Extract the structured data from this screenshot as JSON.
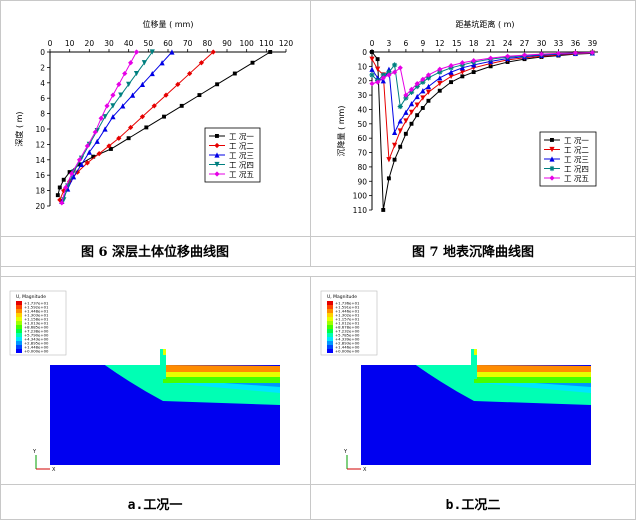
{
  "figure6": {
    "caption": "图 6 深层土体位移曲线图",
    "xlabel": "位移量 ( mm)",
    "ylabel": "深度 ( m)",
    "legend": [
      "工 况一",
      "工 况二",
      "工 况三",
      "工 况四",
      "工 况五"
    ]
  },
  "figure7": {
    "caption": "图 7 地表沉降曲线图",
    "xlabel": "距基坑距离 ( m)",
    "ylabel": "沉降量 ( mm)",
    "legend": [
      "工 况一",
      "工 况二",
      "工 况三",
      "工 况四",
      "工 况五"
    ]
  },
  "fem": {
    "caption_a": "a.工况一",
    "caption_b": "b.工况二",
    "legend_title": "U, Magnitude",
    "legend_values_a": [
      "+1.737e+01",
      "+1.592e+01",
      "+1.448e+01",
      "+1.303e+01",
      "+1.158e+01",
      "+1.013e+01",
      "+8.685e+00",
      "+7.238e+00",
      "+5.790e+00",
      "+4.343e+00",
      "+2.895e+00",
      "+1.448e+00",
      "+0.000e+00"
    ],
    "legend_values_b": [
      "+1.736e+01",
      "+1.591e+01",
      "+1.446e+01",
      "+1.302e+01",
      "+1.157e+01",
      "+1.012e+01",
      "+8.678e+00",
      "+7.232e+00",
      "+5.785e+00",
      "+4.339e+00",
      "+2.893e+00",
      "+1.446e+00",
      "+0.000e+00"
    ],
    "axis_y": "Y",
    "axis_x": "X",
    "colors": [
      "#e60000",
      "#ff4600",
      "#ff8c00",
      "#ffd200",
      "#e6ff00",
      "#a0ff00",
      "#46ff00",
      "#00ff46",
      "#00ffb4",
      "#00e6ff",
      "#0096ff",
      "#0046ff",
      "#0000ff"
    ]
  },
  "chart_data": [
    {
      "type": "line",
      "title": "",
      "xlabel": "位移量 ( mm)",
      "ylabel": "深度 ( m)",
      "xlim": [
        0,
        120
      ],
      "ylim": [
        0,
        20
      ],
      "y_inverted": true,
      "x_ticks": [
        0,
        10,
        20,
        30,
        40,
        50,
        60,
        70,
        80,
        90,
        100,
        110,
        120
      ],
      "y_ticks": [
        0,
        2,
        4,
        6,
        8,
        10,
        12,
        14,
        16,
        18,
        20
      ],
      "series": [
        {
          "name": "工 况一",
          "color": "#000000",
          "marker": "square",
          "x": [
            112,
            103,
            94,
            85,
            76,
            67,
            58,
            49,
            40,
            31,
            22,
            15,
            10,
            7,
            5,
            4
          ],
          "y": [
            0,
            1.4,
            2.8,
            4.2,
            5.6,
            7,
            8.4,
            9.8,
            11.2,
            12.6,
            13.6,
            14.6,
            15.6,
            16.6,
            17.6,
            18.6
          ]
        },
        {
          "name": "工 况二",
          "color": "#e60000",
          "marker": "diamond",
          "x": [
            83,
            77,
            71,
            65,
            59,
            53,
            47,
            41,
            35,
            30,
            25,
            19,
            14,
            10,
            7,
            5
          ],
          "y": [
            0,
            1.4,
            2.8,
            4.2,
            5.6,
            7,
            8.4,
            9.8,
            11.2,
            12.2,
            13.2,
            14.4,
            15.6,
            16.8,
            18,
            19.2
          ]
        },
        {
          "name": "工 况三",
          "color": "#0000e6",
          "marker": "triangle",
          "x": [
            62,
            57,
            52,
            47,
            42,
            37,
            32,
            28,
            24,
            20,
            16,
            12,
            9,
            6
          ],
          "y": [
            0,
            1.4,
            2.8,
            4.2,
            5.6,
            7,
            8.4,
            10,
            11.6,
            13,
            14.6,
            16.2,
            17.8,
            19.4
          ]
        },
        {
          "name": "工 况四",
          "color": "#008080",
          "marker": "triangle-down",
          "x": [
            52,
            48,
            44,
            40,
            36,
            32,
            28,
            24,
            20,
            16,
            12,
            9,
            7
          ],
          "y": [
            0,
            1.4,
            2.8,
            4.2,
            5.6,
            7,
            8.4,
            10.2,
            12,
            13.8,
            15.6,
            17.4,
            19.2
          ]
        },
        {
          "name": "工 况五",
          "color": "#e600e6",
          "marker": "diamond",
          "x": [
            44,
            41,
            38,
            35,
            32,
            29,
            26,
            23,
            19,
            15,
            11,
            8,
            6
          ],
          "y": [
            0,
            1.4,
            2.8,
            4.2,
            5.6,
            7,
            8.6,
            10.4,
            12.2,
            14,
            15.8,
            17.6,
            19.6
          ]
        }
      ]
    },
    {
      "type": "line",
      "title": "",
      "xlabel": "距基坑距离 ( m)",
      "ylabel": "沉降量 ( mm)",
      "xlim": [
        0,
        40
      ],
      "ylim": [
        0,
        110
      ],
      "y_inverted": true,
      "x_ticks": [
        0,
        3,
        6,
        9,
        12,
        15,
        18,
        21,
        24,
        27,
        30,
        33,
        36,
        39
      ],
      "y_ticks": [
        0,
        10,
        20,
        30,
        40,
        50,
        60,
        70,
        80,
        90,
        100,
        110
      ],
      "series": [
        {
          "name": "工 况一",
          "color": "#000000",
          "marker": "square",
          "x": [
            0,
            1,
            2,
            3,
            4,
            5,
            6,
            7,
            8,
            9,
            10,
            12,
            14,
            16,
            18,
            21,
            24,
            27,
            30,
            33,
            36,
            39
          ],
          "y": [
            0,
            5,
            110,
            88,
            75,
            66,
            57,
            50,
            44,
            39,
            34,
            27,
            21,
            17,
            14,
            10,
            7,
            5,
            3.5,
            2.5,
            1.5,
            1
          ]
        },
        {
          "name": "工 况二",
          "color": "#e60000",
          "marker": "triangle-down",
          "x": [
            0,
            1,
            2,
            3,
            4,
            5,
            6,
            7,
            8,
            9,
            10,
            12,
            14,
            16,
            18,
            21,
            24,
            27,
            30,
            33,
            36,
            39
          ],
          "y": [
            5,
            12,
            16,
            75,
            65,
            55,
            48,
            42,
            37,
            32,
            28,
            22,
            17,
            14,
            11,
            8,
            5.5,
            4,
            3,
            2,
            1.2,
            0.8
          ]
        },
        {
          "name": "工 况三",
          "color": "#0000e6",
          "marker": "triangle",
          "x": [
            0,
            1,
            2,
            3,
            4,
            5,
            6,
            7,
            8,
            9,
            10,
            12,
            14,
            16,
            18,
            21,
            24,
            27,
            30,
            33,
            36,
            39
          ],
          "y": [
            12,
            18,
            20,
            12,
            56,
            48,
            42,
            36,
            31,
            27,
            24,
            18,
            14,
            11,
            9,
            6.5,
            4.5,
            3.2,
            2.3,
            1.6,
            1,
            0.6
          ]
        },
        {
          "name": "工 况四",
          "color": "#008080",
          "marker": "star",
          "x": [
            0,
            1,
            2,
            3,
            4,
            5,
            6,
            7,
            8,
            9,
            10,
            12,
            14,
            16,
            18,
            21,
            24,
            27,
            30,
            33,
            36,
            39
          ],
          "y": [
            16,
            20,
            16,
            14,
            9,
            38,
            32,
            28,
            24,
            21,
            18,
            14,
            11,
            9,
            7,
            5,
            3.6,
            2.6,
            1.8,
            1.2,
            0.8,
            0.5
          ]
        },
        {
          "name": "工 况五",
          "color": "#e600e6",
          "marker": "diamond",
          "x": [
            0,
            1,
            2,
            3,
            4,
            5,
            6,
            7,
            8,
            9,
            10,
            12,
            14,
            16,
            18,
            21,
            24,
            27,
            30,
            33,
            36,
            39
          ],
          "y": [
            22,
            21,
            18,
            16,
            14,
            11,
            30,
            26,
            22,
            19,
            16,
            12,
            9.5,
            7.5,
            6,
            4.3,
            3,
            2.2,
            1.5,
            1,
            0.7,
            0.4
          ]
        }
      ]
    }
  ]
}
